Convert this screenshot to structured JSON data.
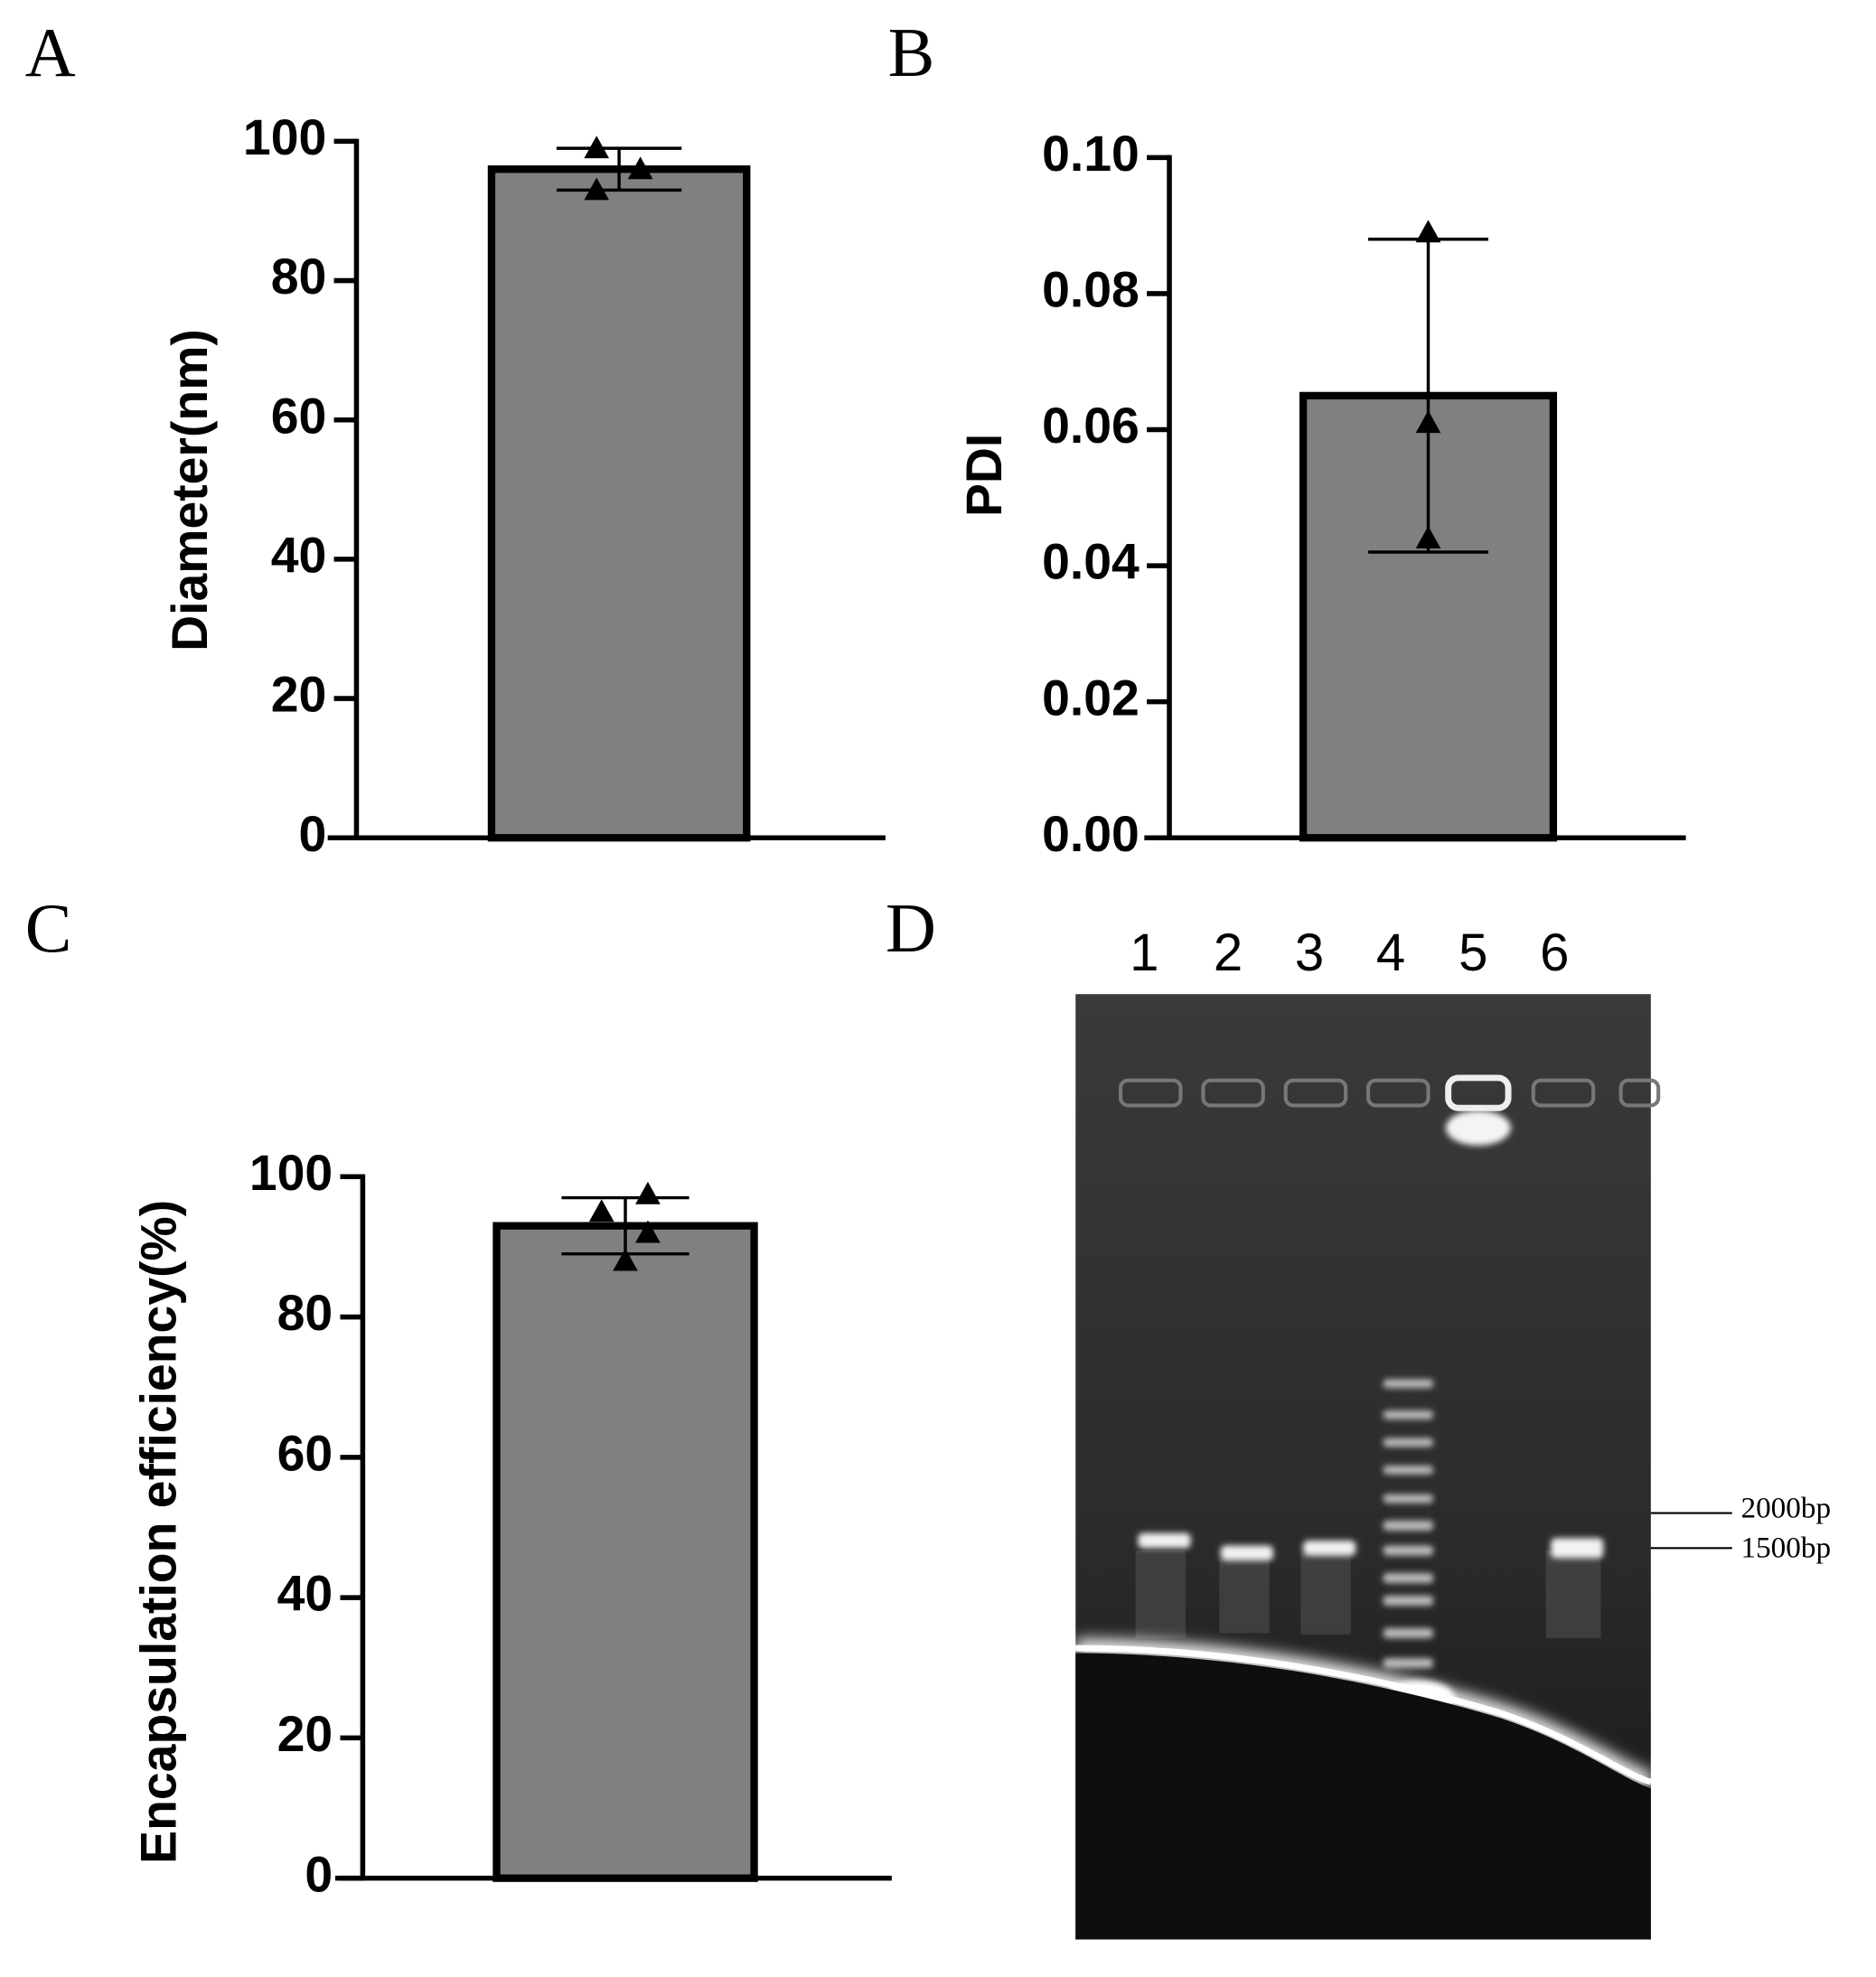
{
  "chart_data": [
    {
      "type": "bar",
      "panel": "A",
      "ylabel": "Diameter(nm)",
      "categories": [
        null
      ],
      "values": [
        96
      ],
      "errors": [
        3
      ],
      "points": [
        [
          99,
          93,
          96
        ]
      ],
      "color": "#808080",
      "ylim": [
        0,
        100
      ],
      "yticks": [
        0,
        20,
        40,
        60,
        80,
        100
      ]
    },
    {
      "type": "bar",
      "panel": "B",
      "ylabel": "PDI",
      "categories": [
        null
      ],
      "values": [
        0.065
      ],
      "errors": [
        0.023
      ],
      "points": [
        [
          0.089,
          0.061,
          0.044
        ]
      ],
      "color": "#808080",
      "ylim": [
        0,
        0.1
      ],
      "yticks": [
        {
          "value": 0,
          "label": "0.00"
        },
        {
          "value": 0.02,
          "label": "0.02"
        },
        {
          "value": 0.04,
          "label": "0.04"
        },
        {
          "value": 0.06,
          "label": "0.06"
        },
        {
          "value": 0.08,
          "label": "0.08"
        },
        {
          "value": 0.1,
          "label": "0.10"
        }
      ]
    },
    {
      "type": "bar",
      "panel": "C",
      "ylabel": "Encapsulation efficiency(%)",
      "categories": [
        null
      ],
      "values": [
        93
      ],
      "errors": [
        4
      ],
      "points": [
        [
          97.5,
          95,
          92,
          88
        ]
      ],
      "color": "#808080",
      "ylim": [
        0,
        100
      ],
      "yticks": [
        0,
        20,
        40,
        60,
        80,
        100
      ]
    },
    {
      "type": "gel",
      "panel": "D",
      "lanes": [
        "1",
        "2",
        "3",
        "4",
        "5",
        "6"
      ],
      "markers": [
        "2000bp",
        "1500bp"
      ]
    }
  ]
}
